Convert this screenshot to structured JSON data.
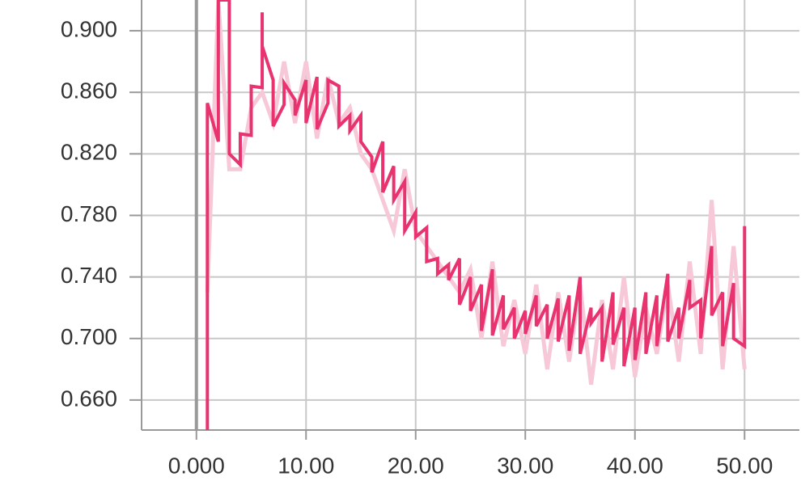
{
  "chart_data": {
    "type": "line",
    "xlim": [
      -5,
      55
    ],
    "ylim": [
      0.6405,
      0.92
    ],
    "xticks": [
      {
        "value": 0,
        "label": "0.000"
      },
      {
        "value": 10,
        "label": "10.00"
      },
      {
        "value": 20,
        "label": "20.00"
      },
      {
        "value": 30,
        "label": "30.00"
      },
      {
        "value": 40,
        "label": "40.00"
      },
      {
        "value": 50,
        "label": "50.00"
      }
    ],
    "yticks": [
      {
        "value": 0.66,
        "label": "0.660"
      },
      {
        "value": 0.7,
        "label": "0.700"
      },
      {
        "value": 0.74,
        "label": "0.740"
      },
      {
        "value": 0.78,
        "label": "0.780"
      },
      {
        "value": 0.82,
        "label": "0.820"
      },
      {
        "value": 0.86,
        "label": "0.860"
      },
      {
        "value": 0.9,
        "label": "0.900"
      }
    ],
    "grid": true,
    "series": [
      {
        "color": "#f7c9d8",
        "width": 5,
        "x": [
          1,
          2,
          3,
          4,
          5,
          6,
          7,
          8,
          9,
          10,
          11,
          12,
          13,
          14,
          15,
          16,
          17,
          18,
          19,
          20,
          21,
          22,
          23,
          24,
          25,
          26,
          27,
          28,
          29,
          30,
          31,
          32,
          33,
          34,
          35,
          36,
          37,
          38,
          39,
          40,
          41,
          42,
          43,
          44,
          45,
          46,
          47,
          48,
          49,
          50
        ],
        "values": [
          0.73,
          0.92,
          0.81,
          0.81,
          0.85,
          0.86,
          0.84,
          0.88,
          0.84,
          0.88,
          0.83,
          0.87,
          0.84,
          0.85,
          0.82,
          0.81,
          0.79,
          0.77,
          0.81,
          0.77,
          0.76,
          0.75,
          0.74,
          0.73,
          0.745,
          0.7,
          0.75,
          0.695,
          0.725,
          0.69,
          0.735,
          0.68,
          0.73,
          0.685,
          0.735,
          0.67,
          0.725,
          0.68,
          0.74,
          0.675,
          0.72,
          0.69,
          0.735,
          0.685,
          0.75,
          0.69,
          0.79,
          0.68,
          0.76,
          0.68
        ]
      },
      {
        "color": "#e8336f",
        "width": 4,
        "x": [
          1,
          1,
          2,
          2,
          3,
          3,
          4,
          4,
          5,
          5,
          6,
          6,
          6,
          7,
          7,
          8,
          8,
          9,
          9,
          10,
          10,
          11,
          11,
          12,
          12,
          13,
          13,
          14,
          14,
          15,
          15,
          16,
          16,
          17,
          17,
          18,
          18,
          19,
          19,
          20,
          20,
          21,
          21,
          22,
          22,
          23,
          23,
          24,
          24,
          25,
          25,
          26,
          26,
          27,
          27,
          28,
          28,
          29,
          29,
          30,
          30,
          31,
          31,
          32,
          32,
          33,
          33,
          34,
          34,
          35,
          35,
          36,
          36,
          37,
          37,
          38,
          38,
          39,
          39,
          40,
          40,
          41,
          41,
          42,
          42,
          43,
          43,
          44,
          44,
          45,
          45,
          46,
          46,
          47,
          47,
          48,
          48,
          49,
          49,
          50,
          50
        ],
        "values": [
          0.64,
          0.853,
          0.828,
          0.92,
          0.92,
          0.82,
          0.813,
          0.833,
          0.832,
          0.864,
          0.863,
          0.912,
          0.89,
          0.868,
          0.838,
          0.852,
          0.866,
          0.855,
          0.845,
          0.868,
          0.84,
          0.87,
          0.836,
          0.853,
          0.868,
          0.864,
          0.838,
          0.845,
          0.835,
          0.845,
          0.828,
          0.818,
          0.808,
          0.828,
          0.795,
          0.812,
          0.79,
          0.802,
          0.77,
          0.782,
          0.766,
          0.772,
          0.75,
          0.752,
          0.742,
          0.748,
          0.738,
          0.752,
          0.722,
          0.74,
          0.718,
          0.735,
          0.705,
          0.745,
          0.702,
          0.728,
          0.706,
          0.72,
          0.7,
          0.718,
          0.703,
          0.728,
          0.708,
          0.722,
          0.7,
          0.726,
          0.698,
          0.728,
          0.692,
          0.74,
          0.69,
          0.72,
          0.71,
          0.72,
          0.685,
          0.73,
          0.696,
          0.72,
          0.682,
          0.72,
          0.686,
          0.73,
          0.69,
          0.728,
          0.695,
          0.742,
          0.698,
          0.72,
          0.7,
          0.738,
          0.72,
          0.725,
          0.7,
          0.76,
          0.715,
          0.73,
          0.695,
          0.736,
          0.7,
          0.695,
          0.773
        ]
      }
    ]
  }
}
